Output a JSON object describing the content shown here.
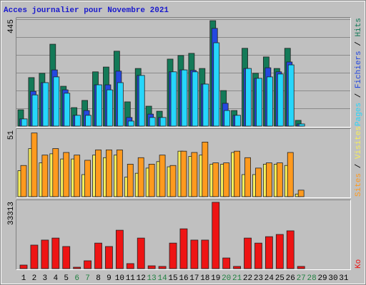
{
  "chart_data": [
    {
      "type": "bar",
      "title": "Acces journalier pour Novembre 2021",
      "ylim": [
        0,
        445
      ],
      "yticks": [
        445
      ],
      "legend_separator": " / ",
      "series": [
        {
          "name": "Hits",
          "color": "#137a58",
          "values": [
            68,
            202,
            220,
            341,
            166,
            77,
            107,
            226,
            246,
            312,
            101,
            240,
            83,
            62,
            279,
            294,
            303,
            240,
            439,
            148,
            65,
            324,
            220,
            288,
            240,
            324,
            24,
            0,
            0,
            0,
            0
          ]
        },
        {
          "name": "Fichiers",
          "color": "#2448e0",
          "values": [
            30,
            145,
            181,
            234,
            151,
            45,
            65,
            172,
            172,
            229,
            36,
            211,
            50,
            36,
            226,
            234,
            232,
            175,
            407,
            95,
            45,
            240,
            199,
            243,
            226,
            267,
            9,
            0,
            0,
            0,
            0
          ]
        },
        {
          "name": "Pages",
          "color": "#26d6fb",
          "values": [
            30,
            130,
            181,
            205,
            137,
            45,
            45,
            172,
            151,
            181,
            21,
            211,
            36,
            36,
            226,
            234,
            226,
            175,
            347,
            65,
            45,
            240,
            199,
            205,
            217,
            255,
            9,
            0,
            0,
            0,
            0
          ]
        }
      ]
    },
    {
      "type": "bar",
      "ylim": [
        0,
        51
      ],
      "yticks": [
        51
      ],
      "legend_separator": " / ",
      "series": [
        {
          "name": "Visites",
          "color": "#f6ee5a",
          "values": [
            20,
            37,
            26,
            33,
            29,
            29,
            17,
            32,
            30,
            32,
            15,
            18,
            22,
            27,
            23,
            35,
            31,
            32,
            25,
            25,
            34,
            17,
            17,
            25,
            25,
            24,
            2,
            0,
            0,
            0,
            0
          ]
        },
        {
          "name": "Sites",
          "color": "#ff9a1e",
          "values": [
            24,
            49,
            32,
            37,
            34,
            32,
            28,
            36,
            36,
            36,
            25,
            30,
            25,
            32,
            24,
            35,
            34,
            42,
            26,
            26,
            35,
            30,
            22,
            26,
            26,
            34,
            5,
            0,
            0,
            0,
            0
          ]
        }
      ]
    },
    {
      "type": "bar",
      "ylim": [
        0,
        33313
      ],
      "yticks": [
        33313
      ],
      "categories": [
        "1",
        "2",
        "3",
        "4",
        "5",
        "6",
        "7",
        "8",
        "9",
        "10",
        "11",
        "12",
        "13",
        "14",
        "15",
        "16",
        "17",
        "18",
        "19",
        "20",
        "21",
        "22",
        "23",
        "24",
        "25",
        "26",
        "27",
        "28",
        "29",
        "30",
        "31"
      ],
      "category_colors": [
        "#000",
        "#000",
        "#000",
        "#000",
        "#000",
        "#208040",
        "#208040",
        "#000",
        "#000",
        "#000",
        "#000",
        "#000",
        "#208040",
        "#208040",
        "#000",
        "#000",
        "#000",
        "#000",
        "#000",
        "#208040",
        "#208040",
        "#000",
        "#000",
        "#000",
        "#000",
        "#000",
        "#208040",
        "#208040",
        "#000",
        "#000",
        "#000"
      ],
      "series": [
        {
          "name": "Ko",
          "color": "#ee1414",
          "values": [
            1770,
            11700,
            14200,
            15200,
            11000,
            700,
            3900,
            12700,
            11000,
            19100,
            2500,
            15200,
            1400,
            1100,
            12700,
            19800,
            14200,
            14200,
            33000,
            5300,
            1100,
            15200,
            12700,
            15900,
            17000,
            18800,
            1100,
            0,
            0,
            0,
            0
          ]
        }
      ]
    }
  ]
}
